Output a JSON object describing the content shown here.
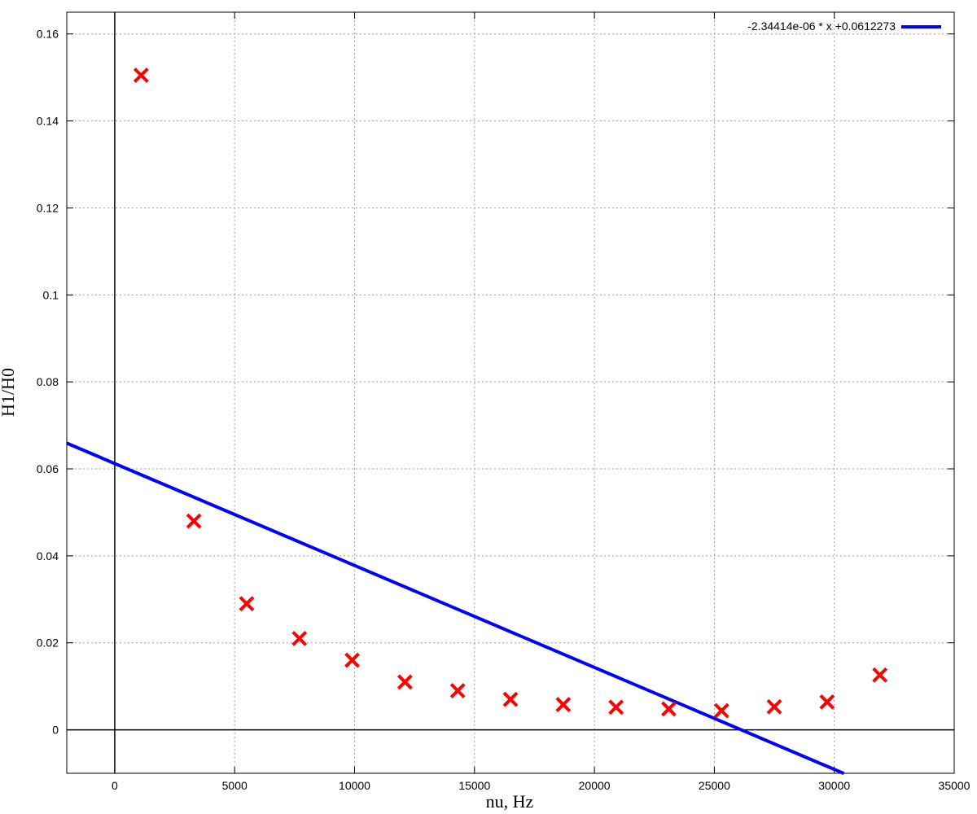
{
  "chart_data": {
    "type": "scatter",
    "xlabel": "nu, Hz",
    "ylabel": "H1/H0",
    "xlim": [
      -2000,
      35000
    ],
    "ylim": [
      -0.01,
      0.165
    ],
    "x_ticks": [
      0,
      5000,
      10000,
      15000,
      20000,
      25000,
      30000,
      35000
    ],
    "x_tick_labels": [
      "0",
      "5000",
      "10000",
      "15000",
      "20000",
      "25000",
      "30000",
      "35000"
    ],
    "y_ticks": [
      0,
      0.02,
      0.04,
      0.06,
      0.08,
      0.1,
      0.12,
      0.14,
      0.16
    ],
    "y_tick_labels": [
      "0",
      "0.02",
      "0.04",
      "0.06",
      "0.08",
      "0.1",
      "0.12",
      "0.14",
      "0.16"
    ],
    "grid": true,
    "legend_position": "top-right",
    "points": {
      "color": "#ff0000",
      "marker": "cross",
      "x": [
        1100,
        3300,
        5500,
        7700,
        9900,
        12100,
        14300,
        16500,
        18700,
        20900,
        23100,
        25300,
        27500,
        29700,
        31900
      ],
      "y": [
        0.1505,
        0.048,
        0.029,
        0.021,
        0.016,
        0.011,
        0.009,
        0.007,
        0.0058,
        0.0052,
        0.0048,
        0.0044,
        0.0053,
        0.0064,
        0.0126
      ]
    },
    "series": [
      {
        "name": "-2.34414e-06 * x +0.0612273",
        "type": "line",
        "color": "#0000ff",
        "slope": -2.34414e-06,
        "intercept": 0.0612273,
        "x_range": [
          -2000,
          30400
        ]
      }
    ]
  }
}
